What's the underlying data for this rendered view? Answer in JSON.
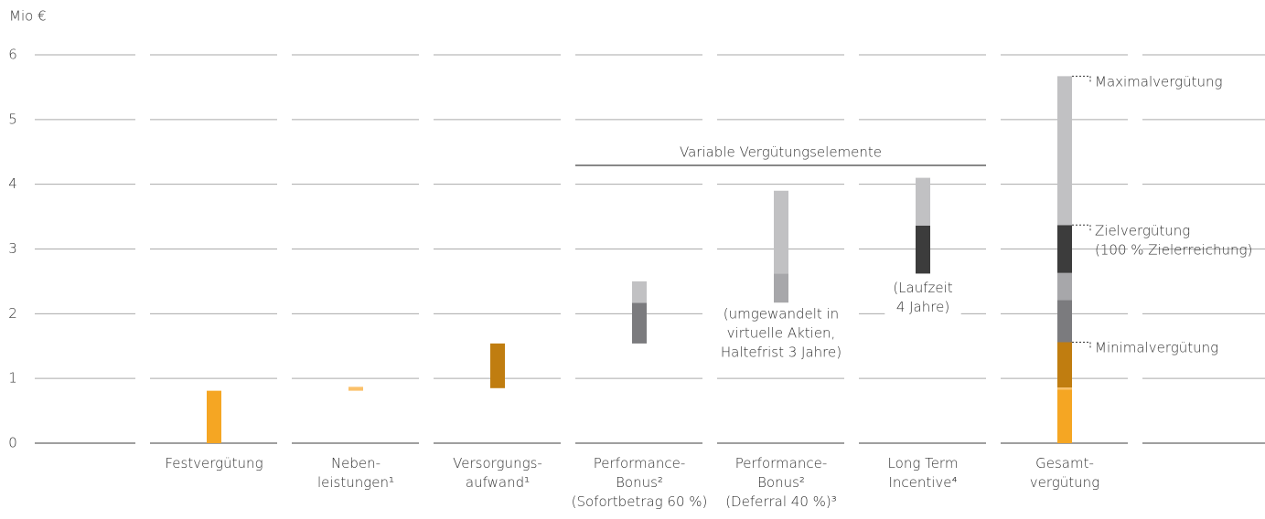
{
  "chart_data": {
    "type": "range-bar",
    "y_axis_label": "Mio €",
    "ylim": [
      0,
      6
    ],
    "yticks": [
      0,
      1,
      2,
      3,
      4,
      5,
      6
    ],
    "grid": true,
    "categories": [
      null,
      [
        "Festvergütung"
      ],
      [
        "Neben-",
        "leistungen¹"
      ],
      [
        "Versorgungs-",
        "aufwand¹"
      ],
      [
        "Performance-",
        "Bonus²",
        "(Sofortbetrag 60 %)"
      ],
      [
        "Performance-",
        "Bonus²",
        "(Deferral 40 %)³"
      ],
      [
        "Long Term",
        "Incentive⁴"
      ],
      [
        "Gesamt-",
        "vergütung"
      ],
      null
    ],
    "bars": [
      [],
      [
        {
          "low": 0,
          "high": 0.81,
          "color": "#f5a623"
        }
      ],
      [
        {
          "low": 0.81,
          "high": 0.87,
          "color": "#fbc16a"
        }
      ],
      [
        {
          "low": 0.85,
          "high": 1.54,
          "color": "#c07d10"
        }
      ],
      [
        {
          "low": 1.54,
          "high": 2.17,
          "color": "#7b7b7e"
        },
        {
          "low": 2.17,
          "high": 2.5,
          "color": "#c1c1c3"
        }
      ],
      [
        {
          "low": 2.17,
          "high": 2.62,
          "color": "#a7a7aa"
        },
        {
          "low": 2.62,
          "high": 3.9,
          "color": "#c1c1c3"
        }
      ],
      [
        {
          "low": 2.62,
          "high": 3.36,
          "color": "#3c3c3c"
        },
        {
          "low": 3.36,
          "high": 4.1,
          "color": "#c1c1c3"
        }
      ],
      [
        {
          "low": 0,
          "high": 0.83,
          "color": "#f5a623"
        },
        {
          "low": 0.83,
          "high": 0.86,
          "color": "#fbc16a"
        },
        {
          "low": 0.86,
          "high": 1.56,
          "color": "#c07d10"
        },
        {
          "low": 1.56,
          "high": 2.21,
          "color": "#7b7b7e"
        },
        {
          "low": 2.21,
          "high": 2.63,
          "color": "#a7a7aa"
        },
        {
          "low": 2.63,
          "high": 3.37,
          "color": "#3c3c3c"
        },
        {
          "low": 3.37,
          "high": 5.67,
          "color": "#c1c1c3"
        }
      ],
      []
    ],
    "bar_notes": [
      {
        "column": 5,
        "value": 2.0,
        "lines": [
          "(umgewandelt in",
          "virtuelle Aktien,",
          "Haltefrist 3 Jahre)"
        ]
      },
      {
        "column": 6,
        "value": 2.4,
        "lines": [
          "(Laufzeit",
          "4 Jahre)"
        ]
      }
    ],
    "group_label": {
      "text": "Variable Vergütungselemente",
      "from": 4,
      "to": 6
    },
    "annotations": [
      {
        "value": 5.67,
        "lines": [
          "Maximalvergütung"
        ]
      },
      {
        "value": 3.37,
        "lines": [
          "Zielvergütung",
          "(100 % Zielerreichung)"
        ]
      },
      {
        "value": 1.56,
        "lines": [
          "Minimalvergütung"
        ]
      }
    ]
  }
}
